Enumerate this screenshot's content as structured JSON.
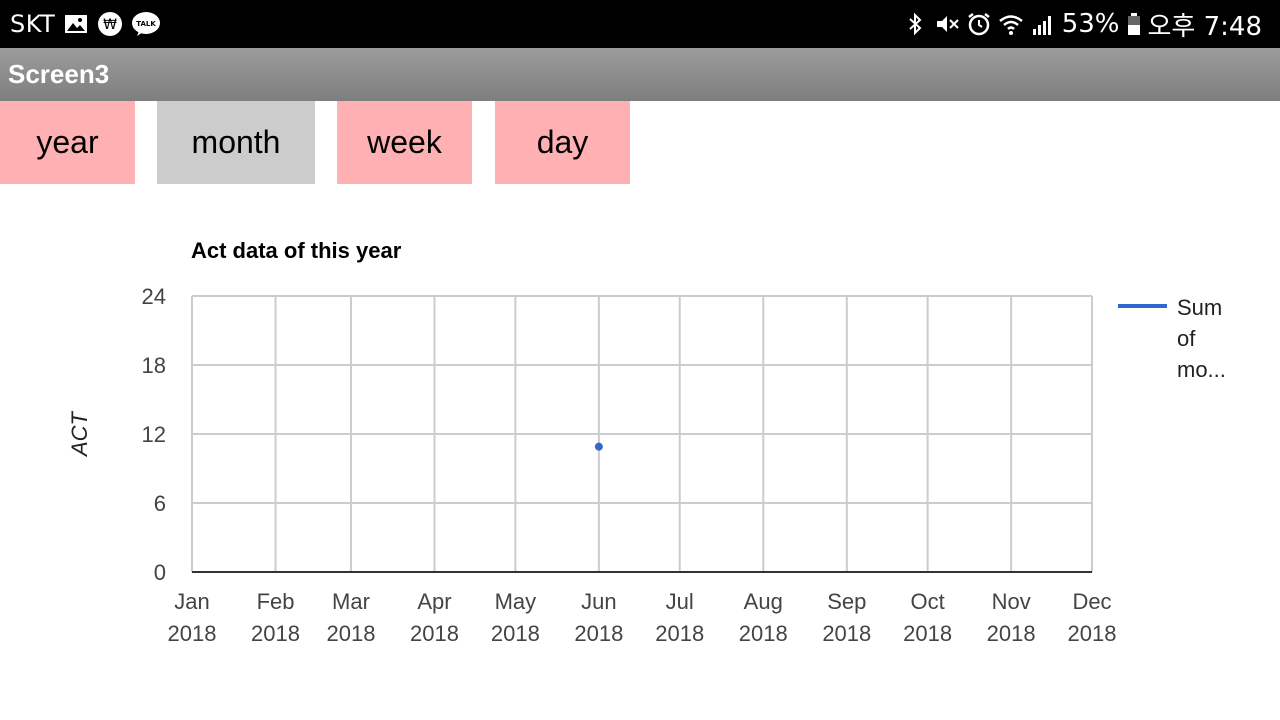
{
  "status_bar": {
    "carrier": "SKT",
    "battery_percent": "53%",
    "time": "오후 7:48",
    "icons_left": [
      "image-icon",
      "won-icon",
      "talk-icon"
    ],
    "icons_right": [
      "bluetooth-icon",
      "mute-icon",
      "alarm-icon",
      "wifi-icon",
      "signal-icon",
      "battery-icon"
    ]
  },
  "app_bar": {
    "title": "Screen3"
  },
  "tabs": [
    {
      "label": "year",
      "color": "#ffb0b2"
    },
    {
      "label": "month",
      "color": "#cccccc"
    },
    {
      "label": "week",
      "color": "#ffb0b2"
    },
    {
      "label": "day",
      "color": "#ffb0b2"
    }
  ],
  "chart_data": {
    "type": "line",
    "title": "Act data of this year",
    "xlabel": "",
    "ylabel": "ACT",
    "x_tick_labels": [
      [
        "Jan",
        "2018"
      ],
      [
        "Feb",
        "2018"
      ],
      [
        "Mar",
        "2018"
      ],
      [
        "Apr",
        "2018"
      ],
      [
        "May",
        "2018"
      ],
      [
        "Jun",
        "2018"
      ],
      [
        "Jul",
        "2018"
      ],
      [
        "Aug",
        "2018"
      ],
      [
        "Sep",
        "2018"
      ],
      [
        "Oct",
        "2018"
      ],
      [
        "Nov",
        "2018"
      ],
      [
        "Dec",
        "2018"
      ]
    ],
    "x_range": [
      "2018-01-01",
      "2018-12-01"
    ],
    "ylim": [
      0,
      24
    ],
    "y_ticks": [
      0,
      6,
      12,
      18,
      24
    ],
    "grid": true,
    "legend_position": "right",
    "series": [
      {
        "name": "Sum of mo...",
        "legend_lines": [
          "Sum",
          "of",
          "mo..."
        ],
        "color": "#3366cc",
        "points": [
          {
            "x": "2018-06-01",
            "y": 10.9
          }
        ]
      }
    ]
  }
}
